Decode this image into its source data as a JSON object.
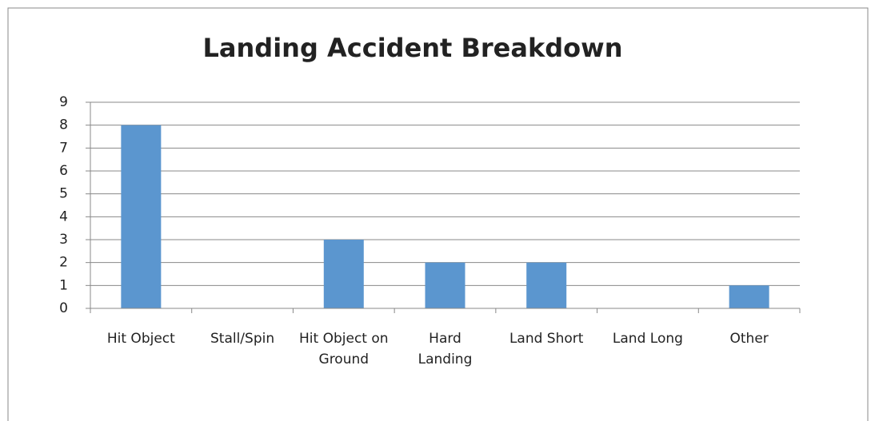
{
  "chart_data": {
    "type": "bar",
    "title": "Landing Accident Breakdown",
    "categories": [
      "Hit Object",
      "Stall/Spin",
      "Hit Object on Ground",
      "Hard Landing",
      "Land Short",
      "Land Long",
      "Other"
    ],
    "values": [
      8,
      0,
      3,
      2,
      2,
      0,
      1
    ],
    "color": "#5b96cf",
    "ylim": [
      0,
      9
    ],
    "yticks": [
      0,
      1,
      2,
      3,
      4,
      5,
      6,
      7,
      8,
      9
    ],
    "grid": true
  }
}
